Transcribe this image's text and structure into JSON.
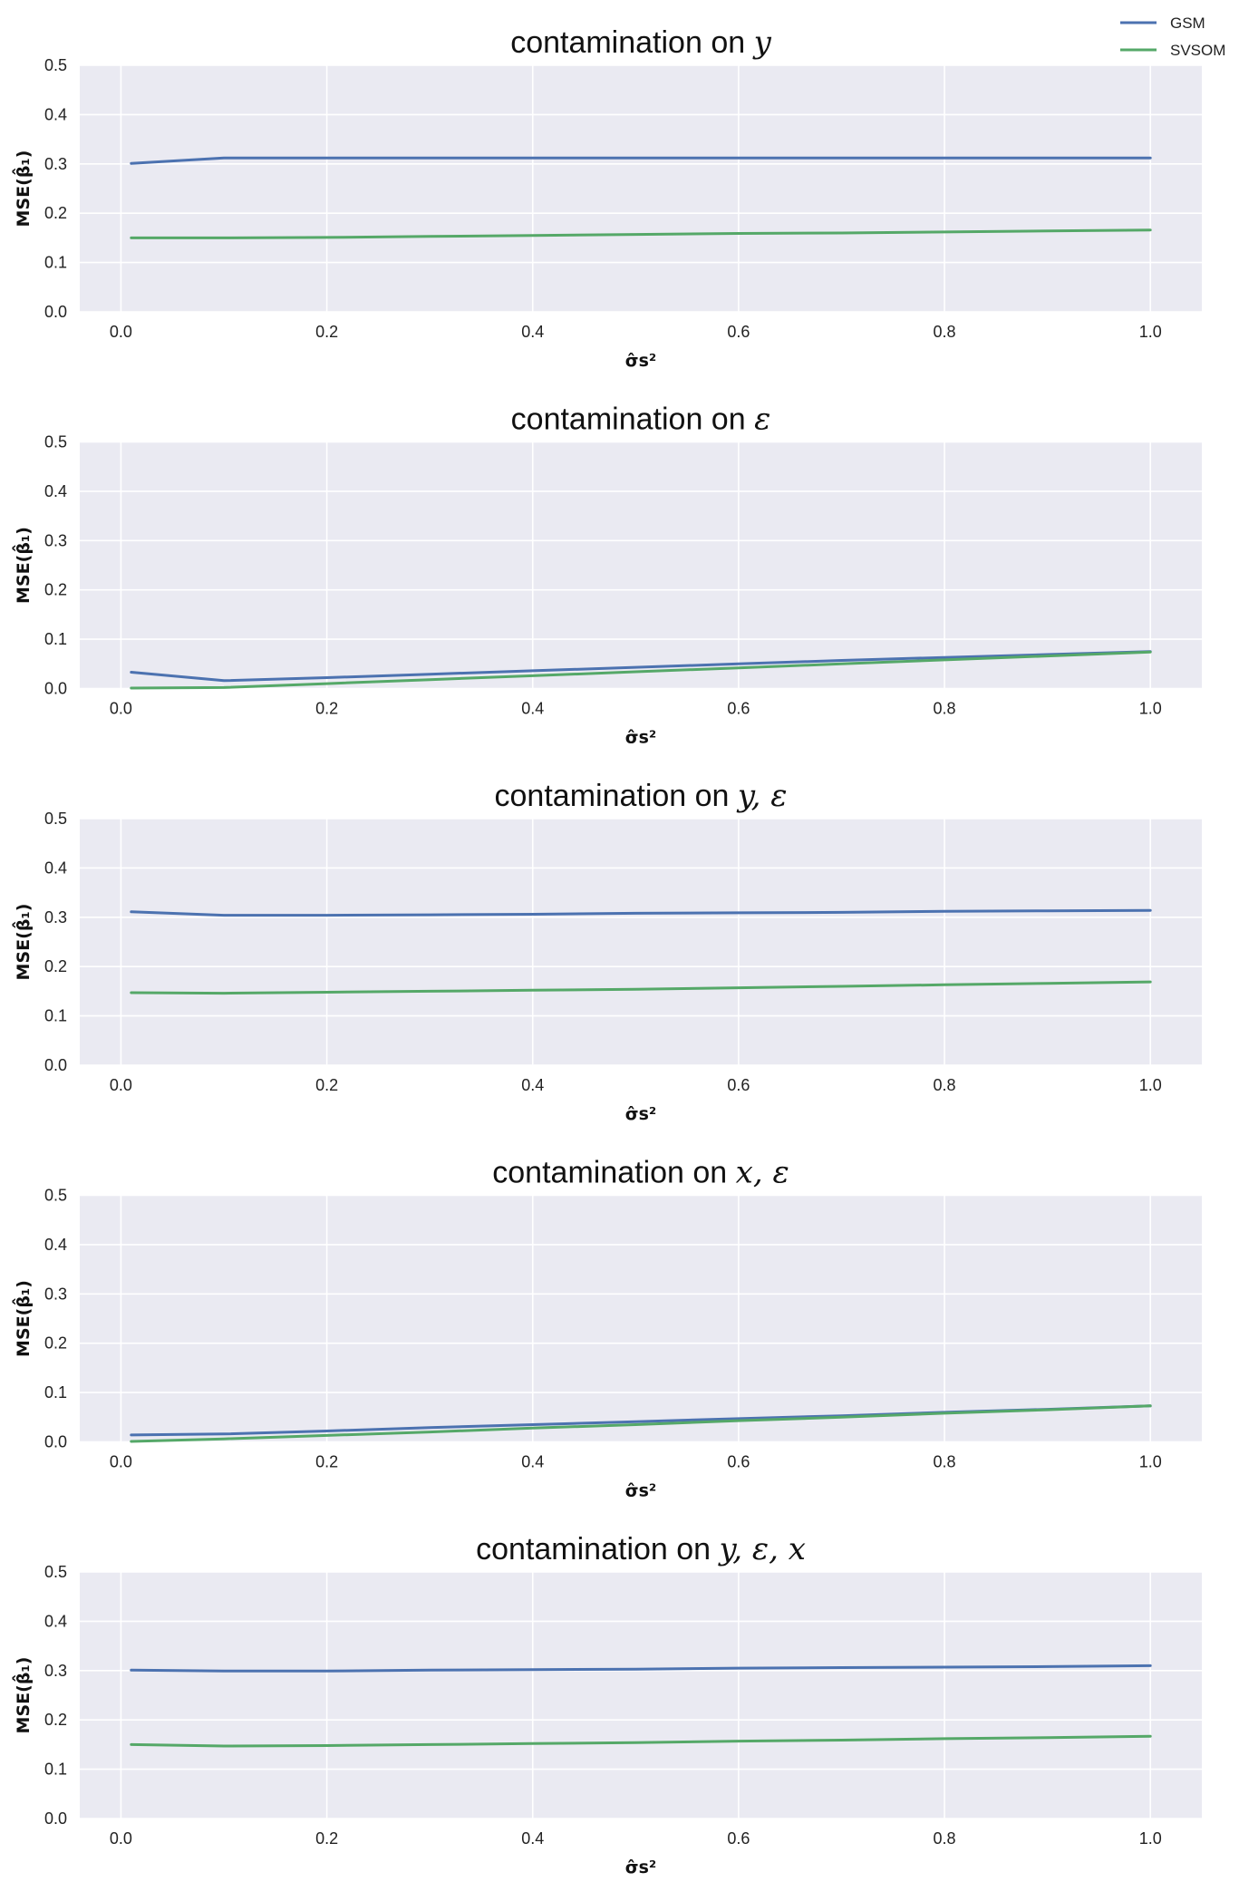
{
  "chart_data": [
    {
      "type": "line",
      "title": "contamination on ",
      "title_math": "y",
      "xlabel": "σ̂s²",
      "ylabel": "MSE(β̂₁)",
      "x": [
        0.01,
        0.1,
        0.2,
        0.3,
        0.4,
        0.5,
        0.6,
        0.7,
        0.8,
        0.9,
        1.0
      ],
      "xlim": [
        -0.04,
        1.05
      ],
      "ylim": [
        0,
        0.5
      ],
      "xticks": [
        "0.0",
        "0.2",
        "0.4",
        "0.6",
        "0.8",
        "1.0"
      ],
      "yticks": [
        "0.0",
        "0.1",
        "0.2",
        "0.3",
        "0.4",
        "0.5"
      ],
      "series": [
        {
          "name": "GSM",
          "values": [
            0.301,
            0.312,
            0.312,
            0.312,
            0.312,
            0.312,
            0.312,
            0.312,
            0.312,
            0.312,
            0.312
          ]
        },
        {
          "name": "SVSOM",
          "values": [
            0.15,
            0.15,
            0.151,
            0.153,
            0.155,
            0.157,
            0.159,
            0.16,
            0.162,
            0.164,
            0.166
          ]
        }
      ]
    },
    {
      "type": "line",
      "title": "contamination on ",
      "title_math": "ε",
      "xlabel": "σ̂s²",
      "ylabel": "MSE(β̂₁)",
      "x": [
        0.01,
        0.1,
        0.2,
        0.3,
        0.4,
        0.5,
        0.6,
        0.7,
        0.8,
        0.9,
        1.0
      ],
      "xlim": [
        -0.04,
        1.05
      ],
      "ylim": [
        0,
        0.5
      ],
      "xticks": [
        "0.0",
        "0.2",
        "0.4",
        "0.6",
        "0.8",
        "1.0"
      ],
      "yticks": [
        "0.0",
        "0.1",
        "0.2",
        "0.3",
        "0.4",
        "0.5"
      ],
      "series": [
        {
          "name": "GSM",
          "values": [
            0.033,
            0.016,
            0.022,
            0.029,
            0.036,
            0.043,
            0.05,
            0.057,
            0.063,
            0.069,
            0.075
          ]
        },
        {
          "name": "SVSOM",
          "values": [
            0.001,
            0.002,
            0.01,
            0.018,
            0.026,
            0.034,
            0.042,
            0.05,
            0.058,
            0.066,
            0.074
          ]
        }
      ]
    },
    {
      "type": "line",
      "title": "contamination on ",
      "title_math": "y, ε",
      "xlabel": "σ̂s²",
      "ylabel": "MSE(β̂₁)",
      "x": [
        0.01,
        0.1,
        0.2,
        0.3,
        0.4,
        0.5,
        0.6,
        0.7,
        0.8,
        0.9,
        1.0
      ],
      "xlim": [
        -0.04,
        1.05
      ],
      "ylim": [
        0,
        0.5
      ],
      "xticks": [
        "0.0",
        "0.2",
        "0.4",
        "0.6",
        "0.8",
        "1.0"
      ],
      "yticks": [
        "0.0",
        "0.1",
        "0.2",
        "0.3",
        "0.4",
        "0.5"
      ],
      "series": [
        {
          "name": "GSM",
          "values": [
            0.311,
            0.304,
            0.304,
            0.305,
            0.306,
            0.308,
            0.309,
            0.31,
            0.312,
            0.313,
            0.314
          ]
        },
        {
          "name": "SVSOM",
          "values": [
            0.147,
            0.146,
            0.148,
            0.15,
            0.152,
            0.154,
            0.157,
            0.16,
            0.163,
            0.166,
            0.169
          ]
        }
      ]
    },
    {
      "type": "line",
      "title": "contamination on ",
      "title_math": "x, ε",
      "xlabel": "σ̂s²",
      "ylabel": "MSE(β̂₁)",
      "x": [
        0.01,
        0.1,
        0.2,
        0.3,
        0.4,
        0.5,
        0.6,
        0.7,
        0.8,
        0.9,
        1.0
      ],
      "xlim": [
        -0.04,
        1.05
      ],
      "ylim": [
        0,
        0.5
      ],
      "xticks": [
        "0.0",
        "0.2",
        "0.4",
        "0.6",
        "0.8",
        "1.0"
      ],
      "yticks": [
        "0.0",
        "0.1",
        "0.2",
        "0.3",
        "0.4",
        "0.5"
      ],
      "series": [
        {
          "name": "GSM",
          "values": [
            0.014,
            0.016,
            0.022,
            0.029,
            0.035,
            0.041,
            0.047,
            0.053,
            0.06,
            0.066,
            0.073
          ]
        },
        {
          "name": "SVSOM",
          "values": [
            0.001,
            0.006,
            0.013,
            0.02,
            0.028,
            0.035,
            0.043,
            0.05,
            0.058,
            0.065,
            0.073
          ]
        }
      ]
    },
    {
      "type": "line",
      "title": "contamination on ",
      "title_math": "y, ε, x",
      "xlabel": "σ̂s²",
      "ylabel": "MSE(β̂₁)",
      "x": [
        0.01,
        0.1,
        0.2,
        0.3,
        0.4,
        0.5,
        0.6,
        0.7,
        0.8,
        0.9,
        1.0
      ],
      "xlim": [
        -0.04,
        1.05
      ],
      "ylim": [
        0,
        0.5
      ],
      "xticks": [
        "0.0",
        "0.2",
        "0.4",
        "0.6",
        "0.8",
        "1.0"
      ],
      "yticks": [
        "0.0",
        "0.1",
        "0.2",
        "0.3",
        "0.4",
        "0.5"
      ],
      "series": [
        {
          "name": "GSM",
          "values": [
            0.301,
            0.299,
            0.299,
            0.301,
            0.302,
            0.303,
            0.305,
            0.306,
            0.307,
            0.308,
            0.31
          ]
        },
        {
          "name": "SVSOM",
          "values": [
            0.15,
            0.147,
            0.148,
            0.15,
            0.152,
            0.154,
            0.157,
            0.159,
            0.162,
            0.164,
            0.167
          ]
        }
      ]
    }
  ],
  "legend": {
    "placement": "top-right",
    "entries": [
      {
        "label": "GSM",
        "color": "#4c72b0"
      },
      {
        "label": "SVSOM",
        "color": "#55a868"
      }
    ]
  },
  "style": {
    "plot_background": "#eaeaf2",
    "grid_color": "#ffffff",
    "gsm_color": "#4c72b0",
    "svsom_color": "#55a868"
  }
}
